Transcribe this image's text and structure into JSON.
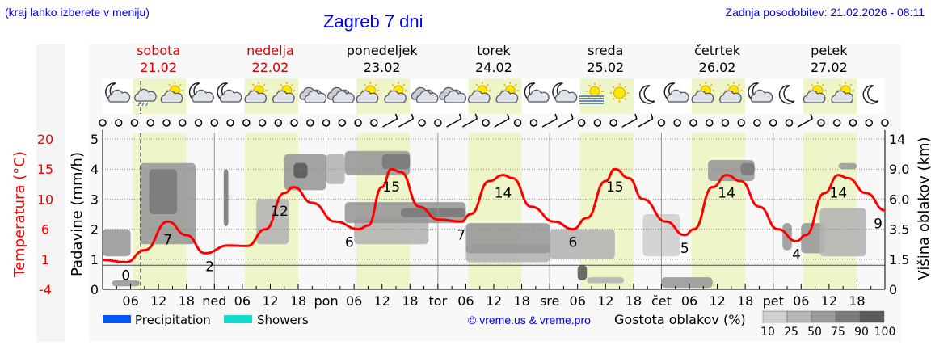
{
  "header": {
    "note": "(kraj lahko izberete v meniju)",
    "title": "Zagreb 7 dni",
    "updated": "Zadnja posodobitev: 21.02.2026 - 08:11"
  },
  "days": [
    {
      "name": "sobota",
      "date": "21.02",
      "weekend": true,
      "abbr": ""
    },
    {
      "name": "nedelja",
      "date": "22.02",
      "weekend": true,
      "abbr": "ned"
    },
    {
      "name": "ponedeljek",
      "date": "23.02",
      "weekend": false,
      "abbr": "pon"
    },
    {
      "name": "torek",
      "date": "24.02",
      "weekend": false,
      "abbr": "tor"
    },
    {
      "name": "sreda",
      "date": "25.02",
      "weekend": false,
      "abbr": "sre"
    },
    {
      "name": "četrtek",
      "date": "26.02",
      "weekend": false,
      "abbr": "čet"
    },
    {
      "name": "petek",
      "date": "27.02",
      "weekend": false,
      "abbr": "pet"
    }
  ],
  "colors": {
    "temperature": "#ff0000",
    "daylight": "#eef5c8",
    "precipitation": "#0055ff",
    "showers": "#11ddcc",
    "weekend": "#dd0000",
    "link": "#0000ff"
  },
  "icons": [
    "moon-cloud",
    "cloud-rain",
    "sun-cloud",
    "moon-cloud",
    "moon-cloud",
    "sun-cloud",
    "sun-cloud",
    "cloud",
    "cloud",
    "sun-cloud",
    "sun-cloud",
    "cloud",
    "cloud",
    "sun-cloud",
    "sun-cloud",
    "moon-cloud",
    "moon-cloud",
    "sun-fog",
    "sun",
    "moon",
    "moon-cloud",
    "sun-cloud",
    "sun-cloud",
    "moon-cloud",
    "moon",
    "sun-cloud",
    "sun-cloud",
    "moon"
  ],
  "wind": [
    "calm",
    "calm",
    "calm",
    "calm",
    "calm",
    "calm",
    "calm",
    "calm",
    "calm",
    "calm",
    "calm",
    "calm",
    "calm",
    "calm",
    "calm",
    "calm",
    "calm",
    "calm",
    "barb",
    "barb",
    "calm",
    "calm",
    "barb",
    "barb",
    "calm",
    "barb",
    "calm",
    "calm",
    "barb",
    "barb",
    "calm",
    "calm",
    "calm",
    "barb",
    "barb",
    "calm",
    "calm",
    "calm",
    "calm",
    "calm",
    "calm",
    "calm",
    "calm",
    "calm",
    "barb",
    "calm",
    "calm",
    "calm",
    "calm",
    "calm"
  ],
  "chart_data": {
    "type": "line",
    "title": "Zagreb 7 dni",
    "x_unit": "hours from 21.02 00:00",
    "xlim": [
      0,
      168
    ],
    "x_tick_labels": [
      "06",
      "12",
      "18"
    ],
    "current_time": "08:11",
    "current_hour": 8.2,
    "y_left": {
      "label": "Padavine (mm/h)",
      "ticks": [
        0,
        1,
        2,
        3,
        4,
        5
      ]
    },
    "y_temp": {
      "label": "Temperatura (°C)",
      "ticks": [
        -4,
        1,
        6,
        10,
        15,
        20
      ]
    },
    "y_right": {
      "label": "Višina oblakov (km)",
      "ticks": [
        "0",
        "1.5",
        "3.5",
        "6.0",
        "9.0",
        "14"
      ]
    },
    "temperature": [
      [
        0,
        0.9
      ],
      [
        5,
        0.5
      ],
      [
        9,
        2.5
      ],
      [
        14,
        7
      ],
      [
        18,
        5
      ],
      [
        22,
        2
      ],
      [
        27,
        3.3
      ],
      [
        31,
        3.2
      ],
      [
        35,
        6
      ],
      [
        39,
        11
      ],
      [
        41,
        12
      ],
      [
        45,
        9.5
      ],
      [
        50,
        7
      ],
      [
        55,
        6
      ],
      [
        57,
        6.5
      ],
      [
        60,
        12
      ],
      [
        62,
        15
      ],
      [
        64,
        14.5
      ],
      [
        68,
        9
      ],
      [
        72,
        7.3
      ],
      [
        77,
        7
      ],
      [
        79,
        8
      ],
      [
        83,
        13
      ],
      [
        86,
        14
      ],
      [
        88,
        13.5
      ],
      [
        92,
        9
      ],
      [
        97,
        7
      ],
      [
        101,
        6
      ],
      [
        104,
        7.5
      ],
      [
        108,
        13
      ],
      [
        110,
        15
      ],
      [
        113,
        13.5
      ],
      [
        116,
        10
      ],
      [
        121,
        7
      ],
      [
        125,
        5
      ],
      [
        127,
        6
      ],
      [
        131,
        12
      ],
      [
        134,
        14
      ],
      [
        137,
        13
      ],
      [
        141,
        9
      ],
      [
        145,
        6
      ],
      [
        149,
        4
      ],
      [
        151,
        5
      ],
      [
        155,
        11
      ],
      [
        158,
        14
      ],
      [
        160,
        13.5
      ],
      [
        164,
        11
      ],
      [
        168,
        8.5
      ]
    ],
    "temperature_labels": [
      [
        5,
        0
      ],
      [
        14,
        7
      ],
      [
        23,
        2
      ],
      [
        38,
        12
      ],
      [
        53,
        6
      ],
      [
        62,
        15
      ],
      [
        77,
        7
      ],
      [
        86,
        14
      ],
      [
        101,
        6
      ],
      [
        110,
        15
      ],
      [
        125,
        5
      ],
      [
        134,
        14
      ],
      [
        149,
        4
      ],
      [
        158,
        14
      ],
      [
        168,
        9
      ]
    ],
    "clouds": [
      [
        0,
        6,
        1.1,
        2.0,
        50
      ],
      [
        2,
        8,
        0.1,
        0.3,
        50
      ],
      [
        8,
        20,
        1.5,
        4.2,
        50
      ],
      [
        10,
        16,
        2.5,
        4.0,
        75
      ],
      [
        26,
        27,
        2.1,
        4.0,
        75
      ],
      [
        33,
        40,
        1.5,
        3.0,
        25
      ],
      [
        39,
        48,
        3.3,
        4.5,
        50
      ],
      [
        41,
        44,
        3.7,
        4.2,
        90
      ],
      [
        48,
        52,
        3.5,
        4.5,
        25
      ],
      [
        54,
        70,
        1.5,
        2.4,
        25
      ],
      [
        52,
        66,
        3.8,
        4.6,
        50
      ],
      [
        60,
        66,
        4.0,
        4.5,
        75
      ],
      [
        52,
        78,
        2.2,
        2.9,
        50
      ],
      [
        64,
        78,
        2.4,
        2.7,
        75
      ],
      [
        78,
        96,
        0.9,
        1.5,
        25
      ],
      [
        78,
        96,
        1.2,
        2.2,
        50
      ],
      [
        96,
        110,
        1.0,
        2.0,
        25
      ],
      [
        104,
        112,
        0.2,
        0.4,
        25
      ],
      [
        102,
        104,
        0.3,
        0.8,
        90
      ],
      [
        116,
        124,
        1.1,
        2.5,
        10
      ],
      [
        120,
        131,
        0.05,
        0.4,
        50
      ],
      [
        130,
        140,
        3.6,
        4.3,
        50
      ],
      [
        137,
        140,
        3.8,
        4.2,
        75
      ],
      [
        146,
        148,
        1.3,
        2.2,
        50
      ],
      [
        150,
        155,
        1.2,
        2.2,
        50
      ],
      [
        154,
        164,
        1.1,
        2.7,
        25
      ],
      [
        158,
        162,
        4.0,
        4.2,
        50
      ]
    ],
    "reference_line_level": 0.8
  },
  "legend": {
    "precipitation": "Precipitation",
    "showers": "Showers",
    "copyright": "© vreme.us & vreme.pro",
    "density_label": "Gostota oblakov (%)",
    "density_levels": [
      "10",
      "25",
      "50",
      "75",
      "90",
      "100"
    ],
    "density_colors": [
      "#cfcfcf",
      "#b4b4b4",
      "#999999",
      "#7a7a7a",
      "#5a5a5a"
    ]
  }
}
